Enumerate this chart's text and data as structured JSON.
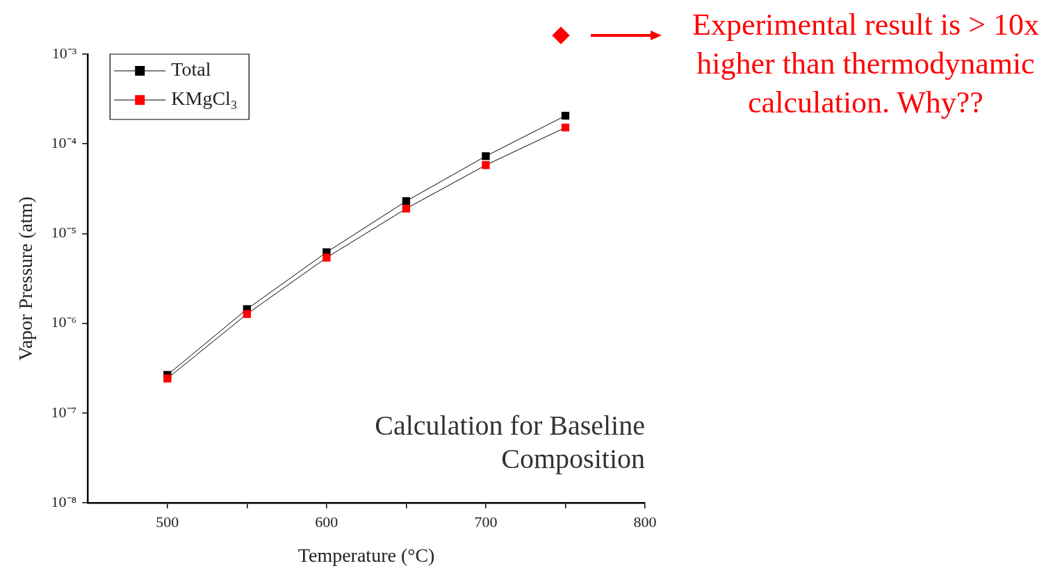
{
  "chart_data": {
    "type": "line",
    "title": "Calculation for Baseline Composition",
    "xlabel": "Temperature (°C)",
    "ylabel": "Vapor Pressure (atm)",
    "x": [
      500,
      550,
      600,
      650,
      700,
      750
    ],
    "series": [
      {
        "name": "Total",
        "color": "#000000",
        "values": [
          2.66e-07,
          1.44e-06,
          6.2e-06,
          2.3e-05,
          7.3e-05,
          0.000206
        ]
      },
      {
        "name": "KMgCl₃",
        "color": "#ff0000",
        "values": [
          2.43e-07,
          1.27e-06,
          5.4e-06,
          1.9e-05,
          5.8e-05,
          0.000152
        ]
      }
    ],
    "log": "y",
    "xlim": [
      450,
      800
    ],
    "xticks": [
      500,
      {
        "value": 550,
        "label": null
      },
      600,
      {
        "value": 650,
        "label": null
      },
      700,
      {
        "value": 750,
        "label": null
      },
      800
    ],
    "ylim": [
      1e-08,
      0.001
    ],
    "yticks": [
      {
        "value": 1e-08,
        "label": "10⁻⁸"
      },
      {
        "value": 1e-07,
        "label": "10⁻⁷"
      },
      {
        "value": 1e-06,
        "label": "10⁻⁶"
      },
      {
        "value": 1e-05,
        "label": "10⁻⁵"
      },
      {
        "value": 0.0001,
        "label": "10⁻⁴"
      },
      {
        "value": 0.001,
        "label": "10⁻³"
      }
    ],
    "grid": false,
    "legend": "top left",
    "marker": "square",
    "line_style": "solid",
    "annotations": [
      "Experimental result is > 10x higher than thermodynamic calculation. Why??"
    ]
  }
}
